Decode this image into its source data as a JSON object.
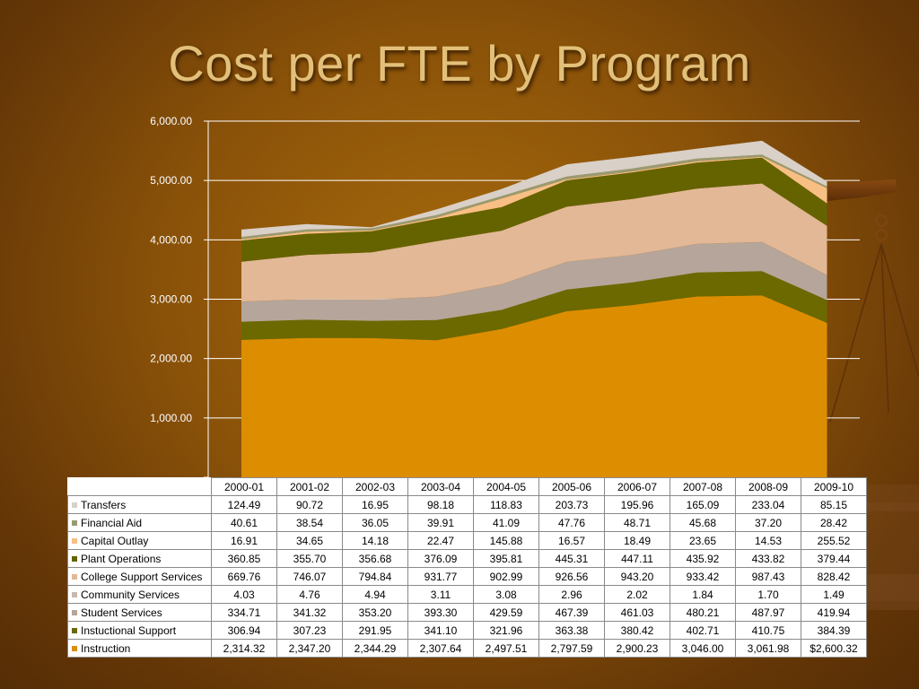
{
  "slide": {
    "title": "Cost per FTE by Program"
  },
  "chart_data": {
    "type": "area",
    "stacked": true,
    "title": "Cost per FTE by Program",
    "categories": [
      "2000-01",
      "2001-02",
      "2002-03",
      "2003-04",
      "2004-05",
      "2005-06",
      "2006-07",
      "2007-08",
      "2008-09",
      "2009-10"
    ],
    "ylim": [
      0,
      6000
    ],
    "yticks": [
      0,
      1000,
      2000,
      3000,
      4000,
      5000,
      6000
    ],
    "ytick_labels": [
      "-",
      "1,000.00",
      "2,000.00",
      "3,000.00",
      "4,000.00",
      "5,000.00",
      "6,000.00"
    ],
    "grid": true,
    "legend": "table-below",
    "series": [
      {
        "name": "Instruction",
        "color": "#dd8e00",
        "values": [
          2314.32,
          2347.2,
          2344.29,
          2307.64,
          2497.51,
          2797.59,
          2900.23,
          3046.0,
          3061.98,
          2600.32
        ],
        "labels": [
          "2,314.32",
          "2,347.20",
          "2,344.29",
          "2,307.64",
          "2,497.51",
          "2,797.59",
          "2,900.23",
          "3,046.00",
          "3,061.98",
          "$2,600.32"
        ]
      },
      {
        "name": "Instuctional Support",
        "color": "#6b6900",
        "values": [
          306.94,
          307.23,
          291.95,
          341.1,
          321.96,
          363.38,
          380.42,
          402.71,
          410.75,
          384.39
        ],
        "labels": [
          "306.94",
          "307.23",
          "291.95",
          "341.10",
          "321.96",
          "363.38",
          "380.42",
          "402.71",
          "410.75",
          "384.39"
        ]
      },
      {
        "name": "Student Services",
        "color": "#b6a59a",
        "values": [
          334.71,
          341.32,
          353.2,
          393.3,
          429.59,
          467.39,
          461.03,
          480.21,
          487.97,
          419.94
        ],
        "labels": [
          "334.71",
          "341.32",
          "353.20",
          "393.30",
          "429.59",
          "467.39",
          "461.03",
          "480.21",
          "487.97",
          "419.94"
        ]
      },
      {
        "name": "Community Services",
        "color": "#c9b8ae",
        "values": [
          4.03,
          4.76,
          4.94,
          3.11,
          3.08,
          2.96,
          2.02,
          1.84,
          1.7,
          1.49
        ],
        "labels": [
          "4.03",
          "4.76",
          "4.94",
          "3.11",
          "3.08",
          "2.96",
          "2.02",
          "1.84",
          "1.70",
          "1.49"
        ]
      },
      {
        "name": "College Support Services",
        "color": "#e2b896",
        "values": [
          669.76,
          746.07,
          794.84,
          931.77,
          902.99,
          926.56,
          943.2,
          933.42,
          987.43,
          828.42
        ],
        "labels": [
          "669.76",
          "746.07",
          "794.84",
          "931.77",
          "902.99",
          "926.56",
          "943.20",
          "933.42",
          "987.43",
          "828.42"
        ]
      },
      {
        "name": "Plant Operations",
        "color": "#656300",
        "values": [
          360.85,
          355.7,
          356.68,
          376.09,
          395.81,
          445.31,
          447.11,
          435.92,
          433.82,
          379.44
        ],
        "labels": [
          "360.85",
          "355.70",
          "356.68",
          "376.09",
          "395.81",
          "445.31",
          "447.11",
          "435.92",
          "433.82",
          "379.44"
        ]
      },
      {
        "name": "Capital Outlay",
        "color": "#f8bf85",
        "values": [
          16.91,
          34.65,
          14.18,
          22.47,
          145.88,
          16.57,
          18.49,
          23.65,
          14.53,
          255.52
        ],
        "labels": [
          "16.91",
          "34.65",
          "14.18",
          "22.47",
          "145.88",
          "16.57",
          "18.49",
          "23.65",
          "14.53",
          "255.52"
        ]
      },
      {
        "name": "Financial Aid",
        "color": "#9a9a70",
        "values": [
          40.61,
          38.54,
          36.05,
          39.91,
          41.09,
          47.76,
          48.71,
          45.68,
          37.2,
          28.42
        ],
        "labels": [
          "40.61",
          "38.54",
          "36.05",
          "39.91",
          "41.09",
          "47.76",
          "48.71",
          "45.68",
          "37.20",
          "28.42"
        ]
      },
      {
        "name": "Transfers",
        "color": "#d9d0c8",
        "values": [
          124.49,
          90.72,
          16.95,
          98.18,
          118.83,
          203.73,
          195.96,
          165.09,
          233.04,
          85.15
        ],
        "labels": [
          "124.49",
          "90.72",
          "16.95",
          "98.18",
          "118.83",
          "203.73",
          "195.96",
          "165.09",
          "233.04",
          "85.15"
        ]
      }
    ]
  }
}
